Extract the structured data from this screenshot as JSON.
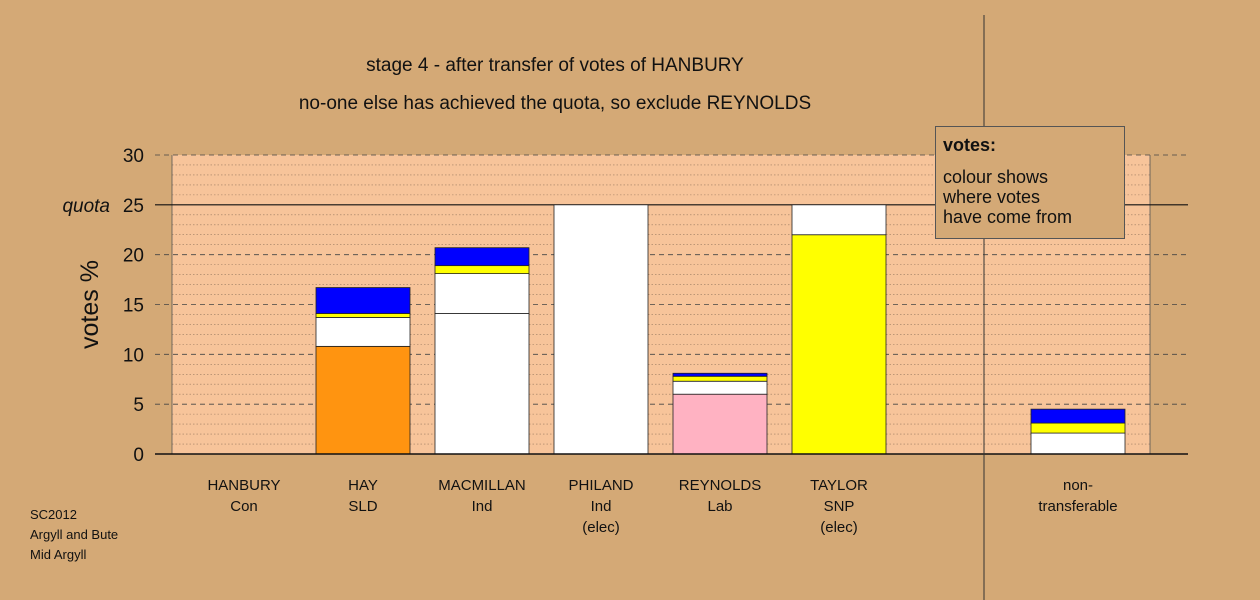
{
  "title": "stage 4 - after transfer of votes of HANBURY",
  "subtitle": "no-one else has achieved the quota, so exclude REYNOLDS",
  "legend": {
    "title": "votes:",
    "lines": [
      "colour shows",
      "where votes",
      "have come from"
    ]
  },
  "credits": [
    "SC2012",
    "Argyll and Bute",
    "Mid Argyll"
  ],
  "colors": {
    "background": "#d4a976",
    "plot": "#f7c49a",
    "orange": "#ff9410",
    "white": "#ffffff",
    "yellow": "#ffff00",
    "blue": "#0000ff",
    "pink": "#ffb2c2"
  },
  "chart_data": {
    "type": "bar",
    "stacked": true,
    "ylabel": "votes %",
    "ylim": [
      0,
      30
    ],
    "yticks": [
      0,
      5,
      10,
      15,
      20,
      25,
      30
    ],
    "quota": {
      "label": "quota",
      "value": 25
    },
    "categories": [
      {
        "name": "HANBURY",
        "party": "Con",
        "note": ""
      },
      {
        "name": "HAY",
        "party": "SLD",
        "note": ""
      },
      {
        "name": "MACMILLAN",
        "party": "Ind",
        "note": ""
      },
      {
        "name": "PHILAND",
        "party": "Ind",
        "note": "(elec)"
      },
      {
        "name": "REYNOLDS",
        "party": "Lab",
        "note": ""
      },
      {
        "name": "TAYLOR",
        "party": "SNP",
        "note": "(elec)"
      },
      {
        "name": "non-",
        "party": "transferable",
        "note": ""
      }
    ],
    "stacks": [
      [],
      [
        {
          "value": 10.8,
          "color": "orange"
        },
        {
          "value": 2.9,
          "color": "white"
        },
        {
          "value": 0.4,
          "color": "yellow"
        },
        {
          "value": 2.6,
          "color": "blue"
        }
      ],
      [
        {
          "value": 14.1,
          "color": "white"
        },
        {
          "value": 4.0,
          "color": "white"
        },
        {
          "value": 0.8,
          "color": "yellow"
        },
        {
          "value": 1.8,
          "color": "blue"
        }
      ],
      [
        {
          "value": 25.0,
          "color": "white"
        }
      ],
      [
        {
          "value": 6.0,
          "color": "pink"
        },
        {
          "value": 1.3,
          "color": "white"
        },
        {
          "value": 0.5,
          "color": "yellow"
        },
        {
          "value": 0.3,
          "color": "blue"
        }
      ],
      [
        {
          "value": 22.0,
          "color": "yellow"
        },
        {
          "value": 3.0,
          "color": "white"
        }
      ],
      [
        {
          "value": 2.1,
          "color": "white"
        },
        {
          "value": 1.0,
          "color": "yellow"
        },
        {
          "value": 1.4,
          "color": "blue"
        }
      ]
    ]
  }
}
